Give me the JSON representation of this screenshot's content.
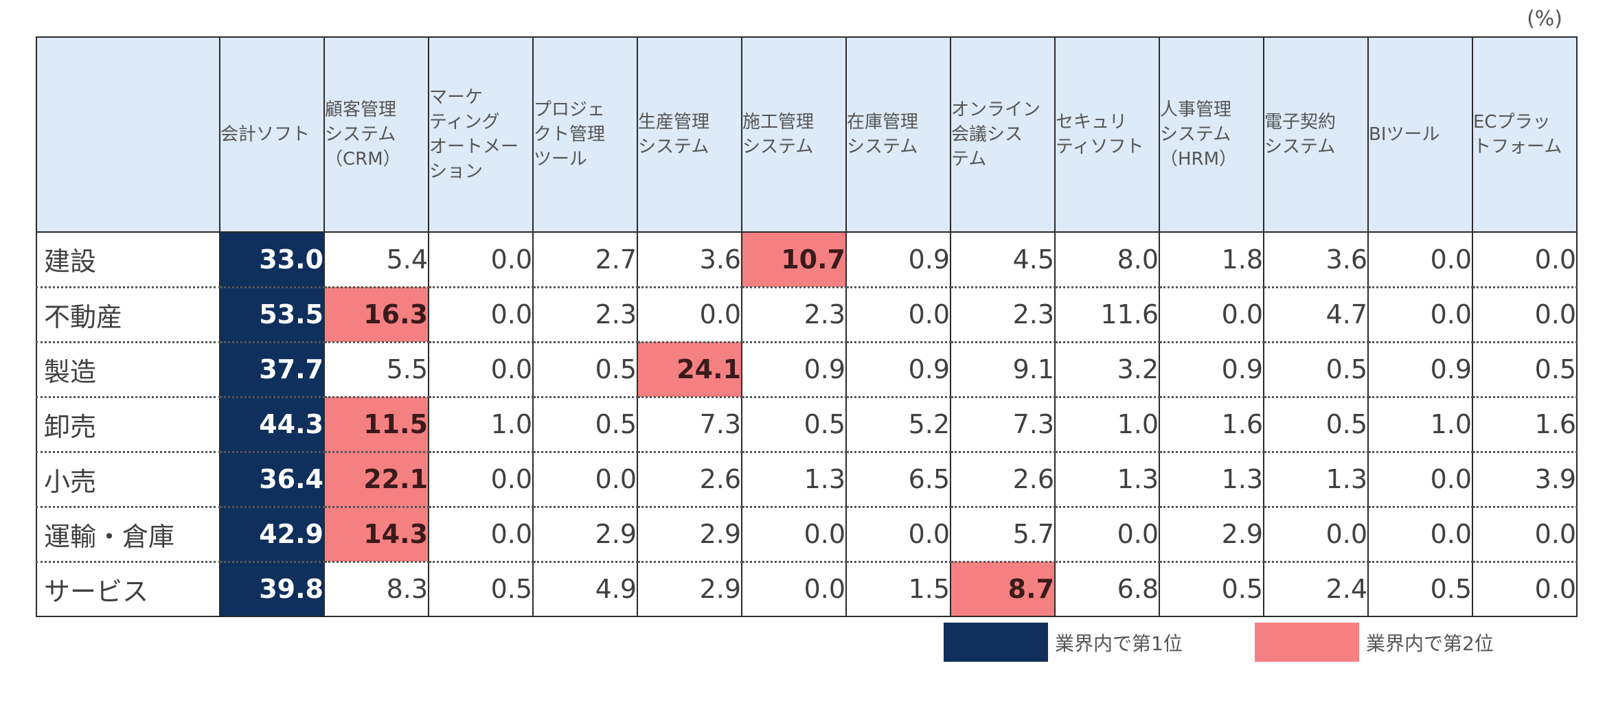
{
  "unit_label": "(%)",
  "chart_data": {
    "type": "table",
    "columns": [
      "会計ソフト",
      "顧客管理\nシステム\n（CRM）",
      "マーケ\nティング\nオートメー\nション",
      "プロジェ\nクト管理\nツール",
      "生産管理\nシステム",
      "施工管理\nシステム",
      "在庫管理\nシステム",
      "オンライン\n会議シス\nテム",
      "セキュリ\nティソフト",
      "人事管理\nシステム\n（HRM）",
      "電子契約\nシステム",
      "BIツール",
      "ECプラッ\nトフォーム"
    ],
    "rows": [
      {
        "label": "建設",
        "values": [
          "33.0",
          "5.4",
          "0.0",
          "2.7",
          "3.6",
          "10.7",
          "0.9",
          "4.5",
          "8.0",
          "1.8",
          "3.6",
          "0.0",
          "0.0"
        ],
        "rank1": 0,
        "rank2": 5
      },
      {
        "label": "不動産",
        "values": [
          "53.5",
          "16.3",
          "0.0",
          "2.3",
          "0.0",
          "2.3",
          "0.0",
          "2.3",
          "11.6",
          "0.0",
          "4.7",
          "0.0",
          "0.0"
        ],
        "rank1": 0,
        "rank2": 1
      },
      {
        "label": "製造",
        "values": [
          "37.7",
          "5.5",
          "0.0",
          "0.5",
          "24.1",
          "0.9",
          "0.9",
          "9.1",
          "3.2",
          "0.9",
          "0.5",
          "0.9",
          "0.5"
        ],
        "rank1": 0,
        "rank2": 4
      },
      {
        "label": "卸売",
        "values": [
          "44.3",
          "11.5",
          "1.0",
          "0.5",
          "7.3",
          "0.5",
          "5.2",
          "7.3",
          "1.0",
          "1.6",
          "0.5",
          "1.0",
          "1.6"
        ],
        "rank1": 0,
        "rank2": 1
      },
      {
        "label": "小売",
        "values": [
          "36.4",
          "22.1",
          "0.0",
          "0.0",
          "2.6",
          "1.3",
          "6.5",
          "2.6",
          "1.3",
          "1.3",
          "1.3",
          "0.0",
          "3.9"
        ],
        "rank1": 0,
        "rank2": 1
      },
      {
        "label": "運輸・倉庫",
        "values": [
          "42.9",
          "14.3",
          "0.0",
          "2.9",
          "2.9",
          "0.0",
          "0.0",
          "5.7",
          "0.0",
          "2.9",
          "0.0",
          "0.0",
          "0.0"
        ],
        "rank1": 0,
        "rank2": 1
      },
      {
        "label": "サービス",
        "values": [
          "39.8",
          "8.3",
          "0.5",
          "4.9",
          "2.9",
          "0.0",
          "1.5",
          "8.7",
          "6.8",
          "0.5",
          "2.4",
          "0.5",
          "0.0"
        ],
        "rank1": 0,
        "rank2": 7
      }
    ],
    "highlight_colors": {
      "rank1": "#0f2f5c",
      "rank2": "#f48082",
      "header": "#ddeaf7"
    }
  },
  "legend": {
    "first_label": "業界内で第1位",
    "second_label": "業界内で第2位"
  }
}
